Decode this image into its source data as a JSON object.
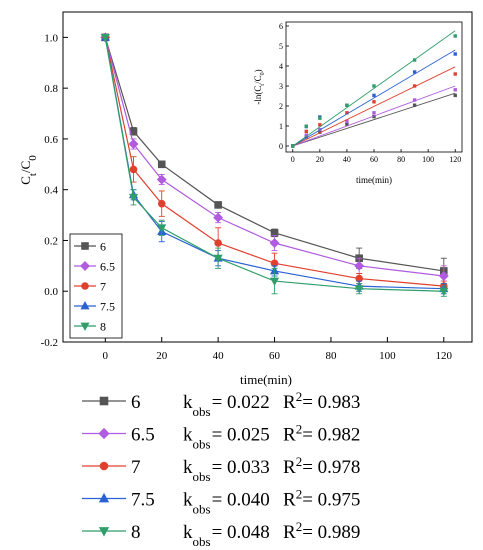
{
  "chart_data": [
    {
      "type": "line",
      "xlabel": "time(min)",
      "ylabel_main": "C",
      "ylabel_sub_t": "t",
      "ylabel_slash": "/C",
      "ylabel_sub_0": "0",
      "xlim": [
        -15,
        130
      ],
      "ylim": [
        -0.2,
        1.1
      ],
      "x_ticks": [
        "0",
        "20",
        "40",
        "60",
        "80",
        "100",
        "120"
      ],
      "y_ticks": [
        "-0.2",
        "0.0",
        "0.2",
        "0.4",
        "0.6",
        "0.8",
        "1.0"
      ],
      "x": [
        0,
        10,
        20,
        40,
        60,
        90,
        120
      ],
      "legend_position": "bottom-left",
      "series": [
        {
          "name": "6",
          "color": "#555555",
          "marker": "square",
          "values": [
            1.0,
            0.63,
            0.5,
            0.34,
            0.23,
            0.13,
            0.08
          ],
          "errors": [
            0,
            0.015,
            0.01,
            0.01,
            0.015,
            0.04,
            0.05
          ]
        },
        {
          "name": "6.5",
          "color": "#b05be0",
          "marker": "diamond",
          "values": [
            1.0,
            0.58,
            0.44,
            0.29,
            0.19,
            0.1,
            0.06
          ],
          "errors": [
            0,
            0.02,
            0.02,
            0.02,
            0.03,
            0.03,
            0.04
          ]
        },
        {
          "name": "7",
          "color": "#e0402e",
          "marker": "circle",
          "values": [
            1.0,
            0.48,
            0.345,
            0.19,
            0.11,
            0.05,
            0.02
          ],
          "errors": [
            0,
            0.05,
            0.05,
            0.06,
            0.04,
            0.02,
            0.02
          ]
        },
        {
          "name": "7.5",
          "color": "#2a62d4",
          "marker": "triangle-up",
          "values": [
            1.0,
            0.38,
            0.235,
            0.13,
            0.08,
            0.02,
            0.01
          ],
          "errors": [
            0,
            0.02,
            0.04,
            0.03,
            0.02,
            0.02,
            0.02
          ]
        },
        {
          "name": "8",
          "color": "#2f9e6a",
          "marker": "triangle-down",
          "values": [
            1.0,
            0.37,
            0.25,
            0.13,
            0.04,
            0.01,
            0.0
          ],
          "errors": [
            0,
            0.03,
            0.03,
            0.04,
            0.05,
            0.02,
            0.02
          ]
        }
      ]
    },
    {
      "type": "scatter",
      "xlabel": "time(min)",
      "ylabel_prefix": "-ln(C",
      "ylabel_sub_t": "t",
      "ylabel_mid": "/C",
      "ylabel_sub_0": "0",
      "ylabel_suffix": ")",
      "xlim": [
        -5,
        125
      ],
      "ylim": [
        -0.3,
        6.2
      ],
      "x_ticks": [
        "0",
        "20",
        "40",
        "60",
        "80",
        "100",
        "120"
      ],
      "y_ticks": [
        "0",
        "1",
        "2",
        "3",
        "4",
        "5",
        "6"
      ],
      "x": [
        0,
        10,
        20,
        40,
        60,
        90,
        120
      ],
      "series": [
        {
          "name": "6",
          "color": "#555555",
          "slope": 0.022,
          "values": [
            0,
            0.46,
            0.69,
            1.08,
            1.47,
            2.04,
            2.53
          ]
        },
        {
          "name": "6.5",
          "color": "#b05be0",
          "slope": 0.025,
          "values": [
            0,
            0.54,
            0.82,
            1.24,
            1.66,
            2.3,
            2.81
          ]
        },
        {
          "name": "7",
          "color": "#e0402e",
          "slope": 0.033,
          "values": [
            0,
            0.73,
            1.06,
            1.66,
            2.21,
            3.0,
            3.6
          ]
        },
        {
          "name": "7.5",
          "color": "#2a62d4",
          "slope": 0.04,
          "values": [
            0,
            0.97,
            1.45,
            2.04,
            2.53,
            3.7,
            4.6
          ]
        },
        {
          "name": "8",
          "color": "#2f9e6a",
          "slope": 0.048,
          "values": [
            0,
            0.99,
            1.39,
            2.04,
            3.0,
            4.3,
            5.5
          ]
        }
      ]
    }
  ],
  "bottom_legend": [
    {
      "name": "6",
      "k_label": "k",
      "k_sub": "obs",
      "k_value": "= 0.022",
      "r_label": "R",
      "r_sup": "2",
      "r_value": "= 0.983"
    },
    {
      "name": "6.5",
      "k_label": "k",
      "k_sub": "obs",
      "k_value": "= 0.025",
      "r_label": "R",
      "r_sup": "2",
      "r_value": "= 0.982"
    },
    {
      "name": "7",
      "k_label": "k",
      "k_sub": "obs",
      "k_value": "= 0.033",
      "r_label": "R",
      "r_sup": "2",
      "r_value": "= 0.978"
    },
    {
      "name": "7.5",
      "k_label": "k",
      "k_sub": "obs",
      "k_value": "= 0.040",
      "r_label": "R",
      "r_sup": "2",
      "r_value": "= 0.975"
    },
    {
      "name": "8",
      "k_label": "k",
      "k_sub": "obs",
      "k_value": "= 0.048",
      "r_label": "R",
      "r_sup": "2",
      "r_value": "= 0.989"
    }
  ]
}
